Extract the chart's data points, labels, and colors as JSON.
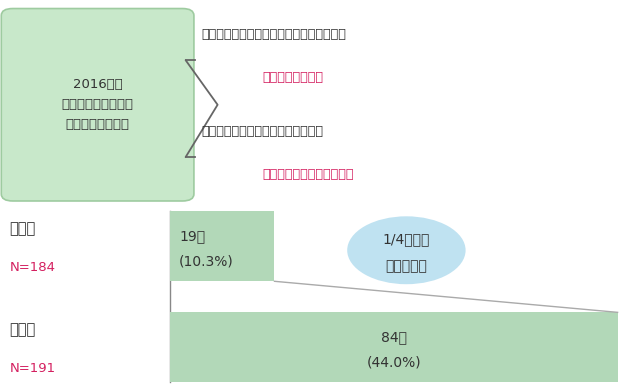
{
  "title_box_text": "2016年度\n介護予防アンケート\n「低栄養」該当者",
  "intervention_line1": "介　入：管理栄養士による６か月に３回の",
  "intervention_line2": "訪問が完了した者",
  "non_intervention_line1": "未介入：拒否または不在などにより",
  "non_intervention_line2": "訪問が完了できなかった者",
  "bar1_label_jp": "介　入",
  "bar1_label_n": "N=184",
  "bar1_value_line1": "19名",
  "bar1_value_line2": "(10.3%)",
  "bar1_pct": 10.3,
  "bar2_label_jp": "未介入",
  "bar2_label_n": "N=191",
  "bar2_value_line1": "84名",
  "bar2_value_line2": "(44.0%)",
  "bar2_pct": 44.0,
  "circle_line1": "1/4以下に",
  "circle_line2": "抑えられる",
  "bar_color": "#b2d8b8",
  "title_box_fill": "#c8e8ca",
  "title_box_edge": "#9ecba0",
  "circle_color": "#b8dff0",
  "red_color": "#d42060",
  "dark_color": "#333333",
  "n_color": "#d42060",
  "axis_color": "#888888",
  "diag_line_color": "#aaaaaa",
  "bar_max_pct": 44.0,
  "figsize": [
    6.4,
    3.88
  ],
  "dpi": 100
}
